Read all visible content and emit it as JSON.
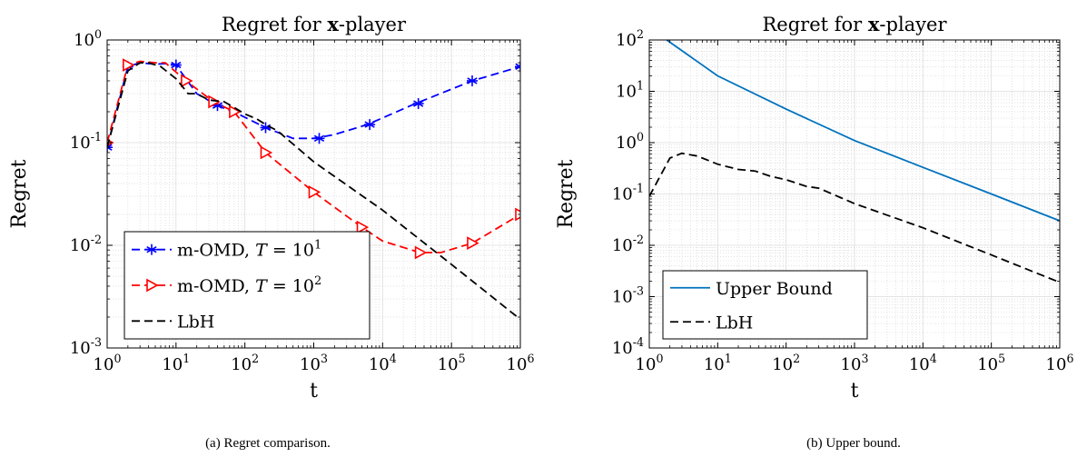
{
  "chart_data": [
    {
      "type": "line",
      "title": "Regret for x-player",
      "title_prefix": "Regret for ",
      "title_bold": "x",
      "title_suffix": "-player",
      "xlabel": "t",
      "ylabel": "Regret",
      "xscale": "log",
      "yscale": "log",
      "xlim": [
        1,
        1000000
      ],
      "ylim": [
        0.001,
        1
      ],
      "x_ticks": [
        "10^0",
        "10^1",
        "10^2",
        "10^3",
        "10^4",
        "10^5",
        "10^6"
      ],
      "y_ticks": [
        "10^-3",
        "10^-2",
        "10^-1",
        "10^0"
      ],
      "grid": true,
      "legend": "bottom-left",
      "caption": "(a) Regret comparison.",
      "series": [
        {
          "name": "m-OMD, T = 10^1",
          "name_prefix": "m-OMD, ",
          "name_var": "T",
          "name_suffix": " = 10",
          "name_sup": "1",
          "color": "#0000ff",
          "dash": "dashed",
          "marker": "asterisk",
          "x": [
            1,
            2,
            3,
            5,
            7,
            10,
            20,
            40,
            80,
            200,
            500,
            1000,
            2000,
            6000,
            30000,
            200000,
            1000000
          ],
          "y": [
            0.09,
            0.55,
            0.6,
            0.58,
            0.59,
            0.57,
            0.3,
            0.23,
            0.19,
            0.14,
            0.11,
            0.11,
            0.12,
            0.15,
            0.24,
            0.4,
            0.55
          ],
          "marker_x": [
            1,
            2,
            10,
            40,
            200,
            1200,
            6500,
            33000,
            200000,
            1000000
          ],
          "marker_y": [
            0.09,
            0.55,
            0.57,
            0.23,
            0.14,
            0.11,
            0.15,
            0.24,
            0.4,
            0.55
          ]
        },
        {
          "name": "m-OMD, T = 10^2",
          "name_prefix": "m-OMD, ",
          "name_var": "T",
          "name_suffix": " = 10",
          "name_sup": "2",
          "color": "#ff0000",
          "dash": "dashed",
          "marker": "triangle-right",
          "x": [
            1,
            2,
            3,
            5,
            7,
            14,
            35,
            70,
            200,
            1000,
            5000,
            10000,
            35000,
            70000,
            200000,
            1000000
          ],
          "y": [
            0.1,
            0.57,
            0.62,
            0.6,
            0.6,
            0.4,
            0.25,
            0.2,
            0.08,
            0.033,
            0.015,
            0.011,
            0.0085,
            0.0085,
            0.0105,
            0.02
          ],
          "marker_x": [
            1,
            2,
            14,
            35,
            70,
            200,
            1000,
            5000,
            35000,
            200000,
            1000000
          ],
          "marker_y": [
            0.1,
            0.57,
            0.4,
            0.25,
            0.2,
            0.08,
            0.033,
            0.015,
            0.0085,
            0.0105,
            0.02
          ]
        },
        {
          "name": "LbH",
          "color": "#000000",
          "dash": "dashed",
          "marker": "none",
          "x": [
            1,
            2,
            3,
            4,
            6,
            10,
            15,
            20,
            30,
            50,
            70,
            100,
            150,
            200,
            300,
            1000,
            10000,
            100000,
            1000000
          ],
          "y": [
            0.09,
            0.5,
            0.6,
            0.6,
            0.55,
            0.42,
            0.3,
            0.3,
            0.26,
            0.25,
            0.22,
            0.19,
            0.17,
            0.15,
            0.13,
            0.065,
            0.022,
            0.0065,
            0.0019
          ]
        }
      ]
    },
    {
      "type": "line",
      "title": "Regret for x-player",
      "title_prefix": "Regret for ",
      "title_bold": "x",
      "title_suffix": "-player",
      "xlabel": "t",
      "ylabel": "Regret",
      "xscale": "log",
      "yscale": "log",
      "xlim": [
        1,
        1000000
      ],
      "ylim": [
        0.0001,
        100
      ],
      "x_ticks": [
        "10^0",
        "10^1",
        "10^2",
        "10^3",
        "10^4",
        "10^5",
        "10^6"
      ],
      "y_ticks": [
        "10^-4",
        "10^-3",
        "10^-2",
        "10^-1",
        "10^0",
        "10^1",
        "10^2"
      ],
      "grid": true,
      "legend": "bottom-left",
      "caption": "(b) Upper bound.",
      "series": [
        {
          "name": "Upper Bound",
          "color": "#0072bd",
          "dash": "solid",
          "marker": "none",
          "x": [
            1.8,
            10,
            100,
            1000,
            10000,
            100000,
            1000000
          ],
          "y": [
            100,
            20,
            4.5,
            1.1,
            0.33,
            0.1,
            0.03
          ]
        },
        {
          "name": "LbH",
          "color": "#000000",
          "dash": "dashed",
          "marker": "none",
          "x": [
            1,
            2,
            3,
            5,
            10,
            20,
            35,
            60,
            100,
            200,
            300,
            1000,
            10000,
            100000,
            1000000
          ],
          "y": [
            0.09,
            0.5,
            0.62,
            0.55,
            0.38,
            0.3,
            0.28,
            0.22,
            0.19,
            0.14,
            0.13,
            0.065,
            0.022,
            0.0065,
            0.0019
          ]
        }
      ]
    }
  ]
}
